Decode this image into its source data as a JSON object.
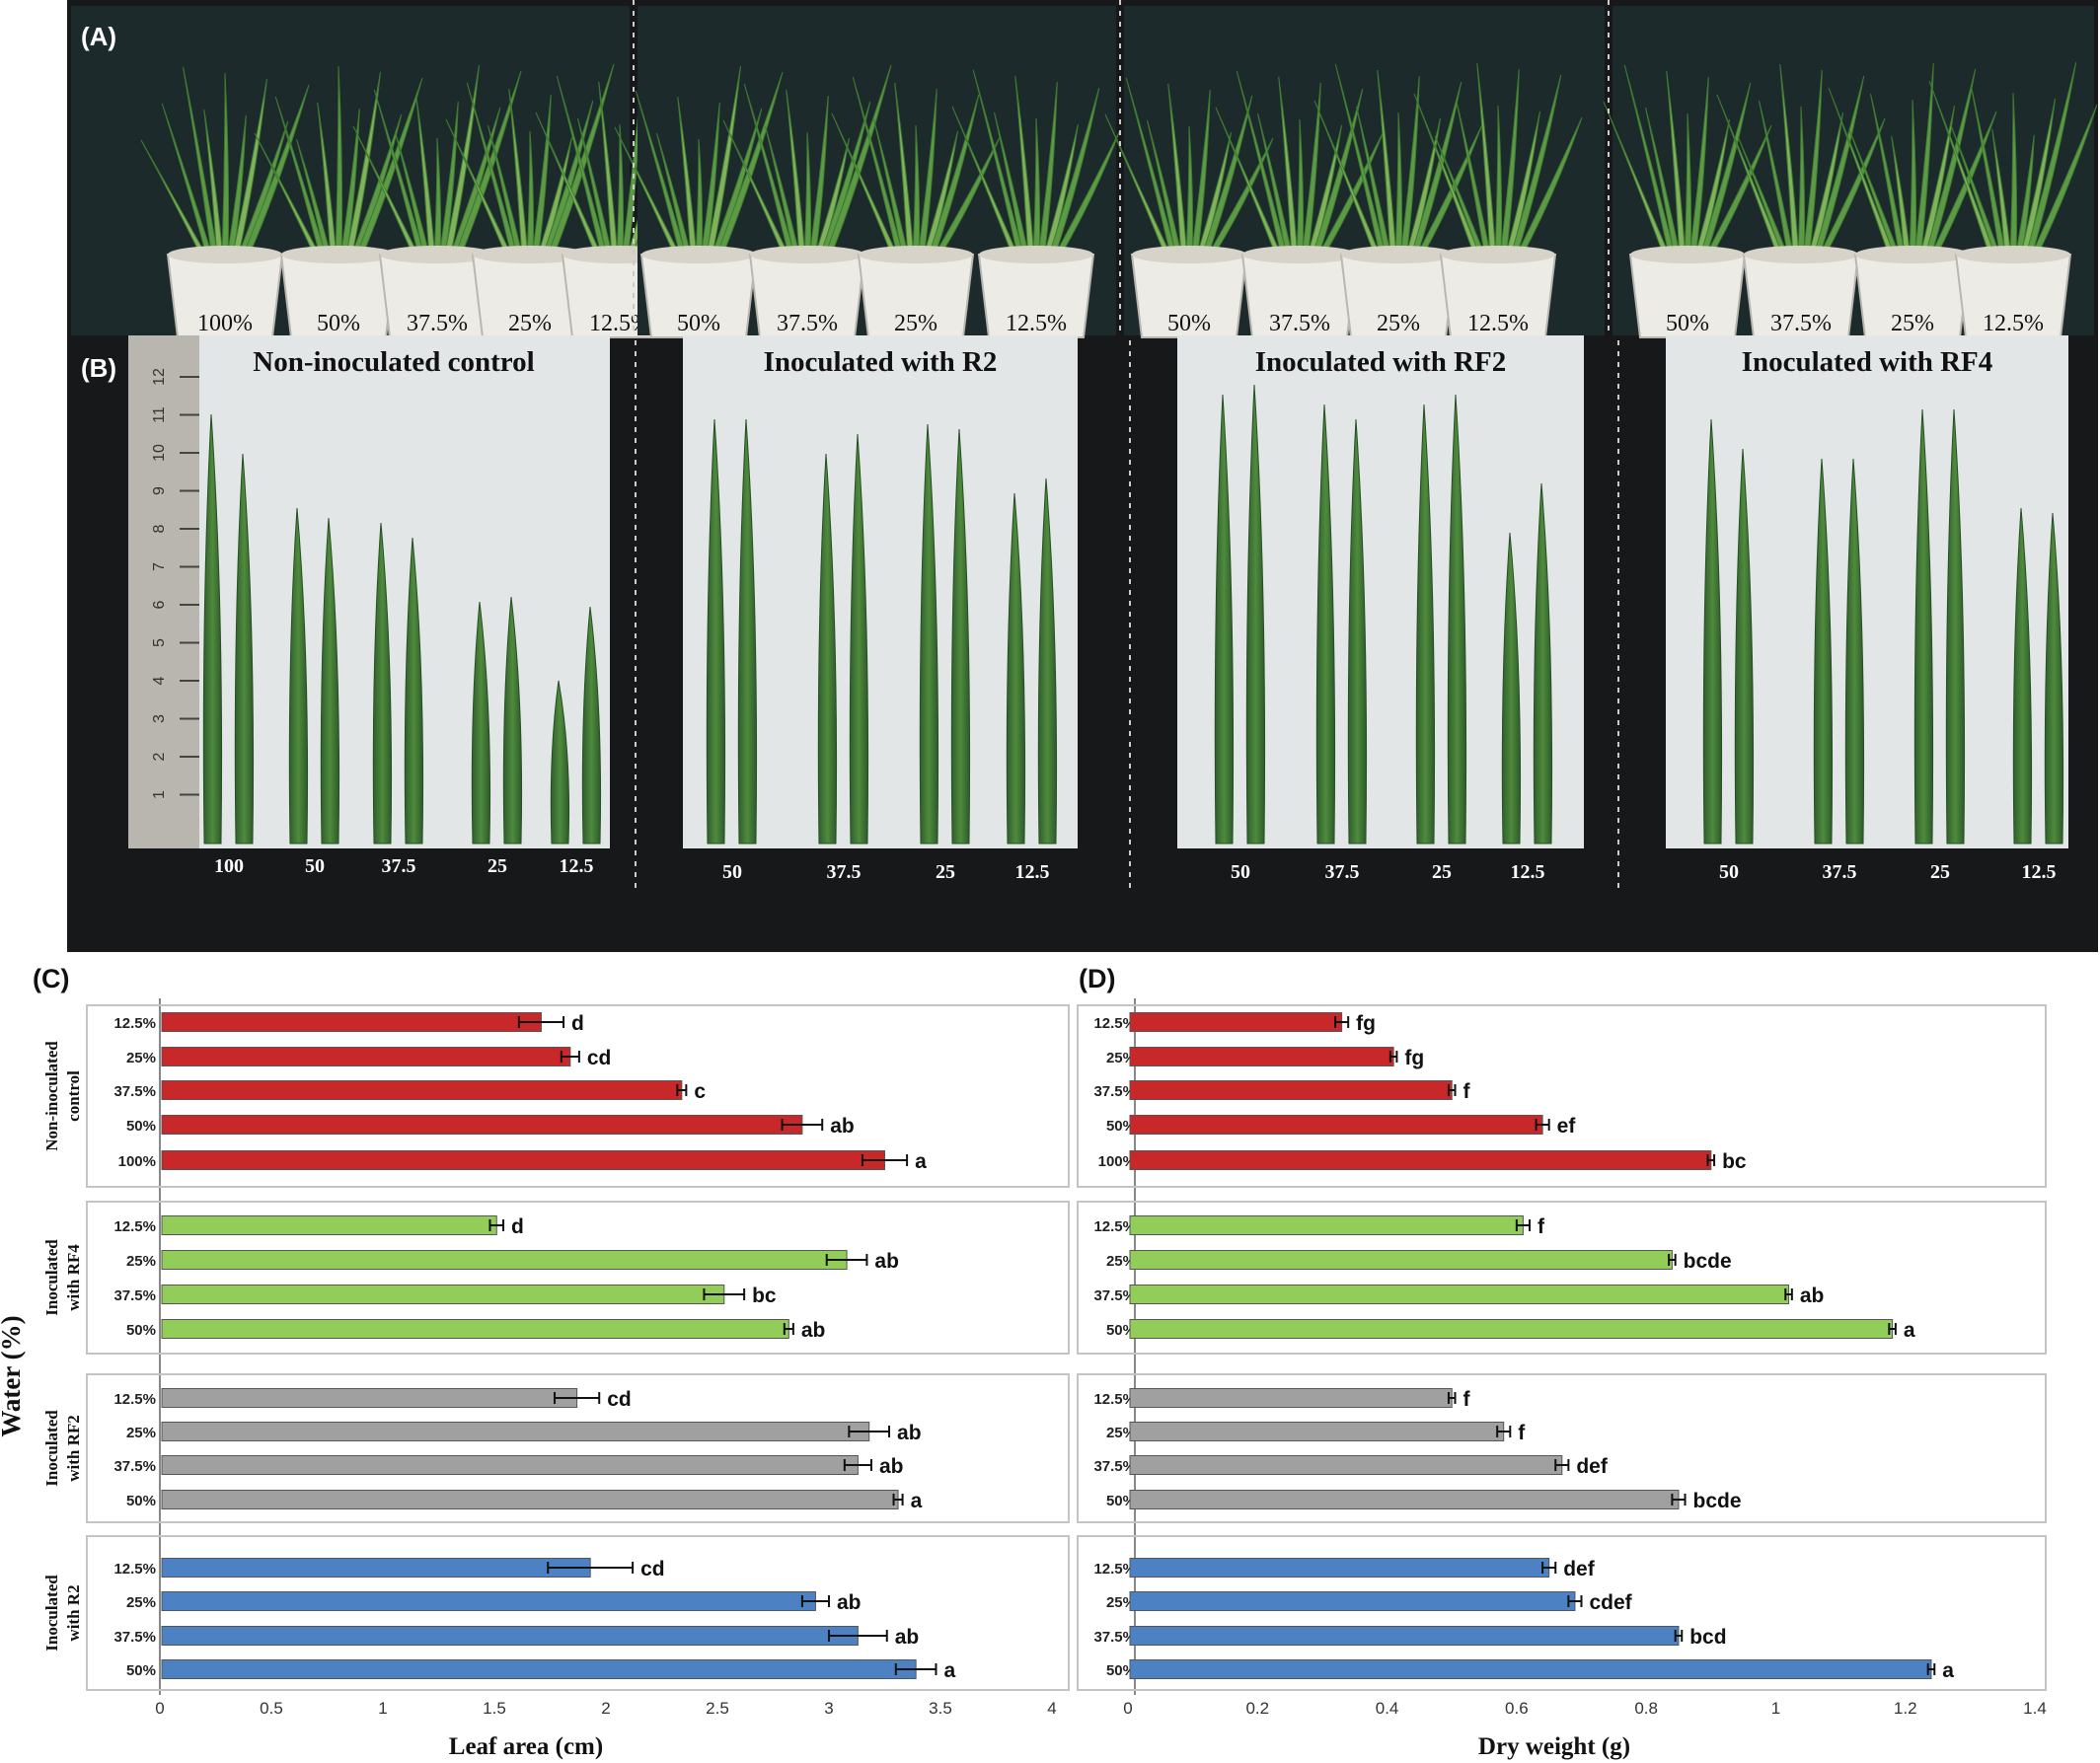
{
  "photos": {
    "panel_a_label": "(A)",
    "panel_b_label": "(B)",
    "groups": [
      {
        "title": "Non-inoculated control",
        "pot_labels": [
          "100%",
          "50%",
          "37.5%",
          "25%",
          "12.5%"
        ],
        "leaf_labels": [
          "100",
          "50",
          "37.5",
          "25",
          "12.5"
        ],
        "ruler_ticks": [
          "12",
          "11",
          "10",
          "9",
          "8",
          "7",
          "6",
          "5",
          "4",
          "3",
          "2",
          "1"
        ]
      },
      {
        "title": "Inoculated with R2",
        "pot_labels": [
          "50%",
          "37.5%",
          "25%",
          "12.5%"
        ],
        "leaf_labels": [
          "50",
          "37.5",
          "25",
          "12.5"
        ]
      },
      {
        "title": "Inoculated with RF2",
        "pot_labels": [
          "50%",
          "37.5%",
          "25%",
          "12.5%"
        ],
        "leaf_labels": [
          "50",
          "37.5",
          "25",
          "12.5"
        ]
      },
      {
        "title": "Inoculated with RF4",
        "pot_labels": [
          "50%",
          "37.5%",
          "25%",
          "12.5%"
        ],
        "leaf_labels": [
          "50",
          "37.5",
          "25",
          "12.5"
        ]
      }
    ]
  },
  "shared_ylabel": "Water (%)",
  "chart_data": [
    {
      "type": "bar",
      "orientation": "horizontal",
      "panel_label": "(C)",
      "xlabel": "Leaf area (cm)",
      "xlim": [
        0,
        4
      ],
      "xticks": [
        "0",
        "0.5",
        "1",
        "1.5",
        "2",
        "2.5",
        "3",
        "3.5",
        "4"
      ],
      "groups": [
        {
          "name": "Non-inoculated control",
          "color": "#c8282a",
          "categories": [
            "12.5%",
            "25%",
            "37.5%",
            "50%",
            "100%"
          ],
          "values": [
            1.71,
            1.84,
            2.34,
            2.88,
            3.25
          ],
          "errors": [
            0.1,
            0.04,
            0.02,
            0.09,
            0.1
          ],
          "letters": [
            "d",
            "cd",
            "c",
            "ab",
            "a"
          ]
        },
        {
          "name": "Inoculated with RF4",
          "color": "#92cd5a",
          "categories": [
            "12.5%",
            "25%",
            "37.5%",
            "50%"
          ],
          "values": [
            1.51,
            3.08,
            2.53,
            2.82
          ],
          "errors": [
            0.03,
            0.09,
            0.09,
            0.02
          ],
          "letters": [
            "d",
            "ab",
            "bc",
            "ab"
          ]
        },
        {
          "name": "Inoculated with RF2",
          "color": "#a0a0a0",
          "categories": [
            "12.5%",
            "25%",
            "37.5%",
            "50%"
          ],
          "values": [
            1.87,
            3.18,
            3.13,
            3.31
          ],
          "errors": [
            0.1,
            0.09,
            0.06,
            0.02
          ],
          "letters": [
            "cd",
            "ab",
            "ab",
            "a"
          ]
        },
        {
          "name": "Inoculated with R2",
          "color": "#4c82c3",
          "categories": [
            "12.5%",
            "25%",
            "37.5%",
            "50%"
          ],
          "values": [
            1.93,
            2.94,
            3.13,
            3.39
          ],
          "errors": [
            0.19,
            0.06,
            0.13,
            0.09
          ],
          "letters": [
            "cd",
            "ab",
            "ab",
            "a"
          ]
        }
      ]
    },
    {
      "type": "bar",
      "orientation": "horizontal",
      "panel_label": "(D)",
      "xlabel": "Dry weight (g)",
      "xlim": [
        0,
        1.4
      ],
      "xticks": [
        "0",
        "0.2",
        "0.4",
        "0.6",
        "0.8",
        "1",
        "1.2",
        "1.4"
      ],
      "groups": [
        {
          "name": "Non-inoculated control",
          "color": "#c8282a",
          "categories": [
            "12.5%",
            "25%",
            "37.5%",
            "50%",
            "100%"
          ],
          "values": [
            0.33,
            0.41,
            0.5,
            0.64,
            0.9
          ],
          "errors": [
            0.01,
            0.005,
            0.005,
            0.01,
            0.005
          ],
          "letters": [
            "fg",
            "fg",
            "f",
            "ef",
            "bc"
          ]
        },
        {
          "name": "Inoculated with RF4",
          "color": "#92cd5a",
          "categories": [
            "12.5%",
            "25%",
            "37.5%",
            "50%"
          ],
          "values": [
            0.61,
            0.84,
            1.02,
            1.18
          ],
          "errors": [
            0.01,
            0.005,
            0.005,
            0.005
          ],
          "letters": [
            "f",
            "bcde",
            "ab",
            "a"
          ]
        },
        {
          "name": "Inoculated with RF2",
          "color": "#a0a0a0",
          "categories": [
            "12.5%",
            "25%",
            "37.5%",
            "50%"
          ],
          "values": [
            0.5,
            0.58,
            0.67,
            0.85
          ],
          "errors": [
            0.005,
            0.01,
            0.01,
            0.01
          ],
          "letters": [
            "f",
            "f",
            "def",
            "bcde"
          ]
        },
        {
          "name": "Inoculated with R2",
          "color": "#4c82c3",
          "categories": [
            "12.5%",
            "25%",
            "37.5%",
            "50%"
          ],
          "values": [
            0.65,
            0.69,
            0.85,
            1.24
          ],
          "errors": [
            0.01,
            0.01,
            0.005,
            0.005
          ],
          "letters": [
            "def",
            "cdef",
            "bcd",
            "a"
          ]
        }
      ]
    }
  ]
}
